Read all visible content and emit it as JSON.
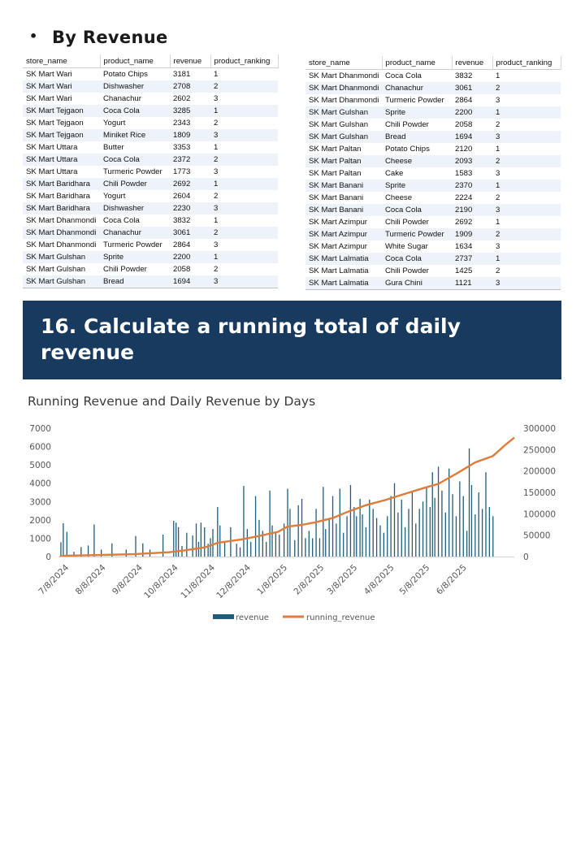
{
  "section_heading": "By Revenue",
  "table_headers": [
    "store_name",
    "product_name",
    "revenue",
    "product_ranking"
  ],
  "table_left": [
    [
      "SK Mart Wari",
      "Potato Chips",
      "3181",
      "1"
    ],
    [
      "SK Mart Wari",
      "Dishwasher",
      "2708",
      "2"
    ],
    [
      "SK Mart Wari",
      "Chanachur",
      "2602",
      "3"
    ],
    [
      "SK Mart Tejgaon",
      "Coca Cola",
      "3285",
      "1"
    ],
    [
      "SK Mart Tejgaon",
      "Yogurt",
      "2343",
      "2"
    ],
    [
      "SK Mart Tejgaon",
      "Miniket Rice",
      "1809",
      "3"
    ],
    [
      "SK Mart Uttara",
      "Butter",
      "3353",
      "1"
    ],
    [
      "SK Mart Uttara",
      "Coca Cola",
      "2372",
      "2"
    ],
    [
      "SK Mart Uttara",
      "Turmeric Powder",
      "1773",
      "3"
    ],
    [
      "SK Mart Baridhara",
      "Chili Powder",
      "2692",
      "1"
    ],
    [
      "SK Mart Baridhara",
      "Yogurt",
      "2604",
      "2"
    ],
    [
      "SK Mart Baridhara",
      "Dishwasher",
      "2230",
      "3"
    ],
    [
      "SK Mart Dhanmondi",
      "Coca Cola",
      "3832",
      "1"
    ],
    [
      "SK Mart Dhanmondi",
      "Chanachur",
      "3061",
      "2"
    ],
    [
      "SK Mart Dhanmondi",
      "Turmeric Powder",
      "2864",
      "3"
    ],
    [
      "SK Mart Gulshan",
      "Sprite",
      "2200",
      "1"
    ],
    [
      "SK Mart Gulshan",
      "Chili Powder",
      "2058",
      "2"
    ],
    [
      "SK Mart Gulshan",
      "Bread",
      "1694",
      "3"
    ]
  ],
  "table_right": [
    [
      "SK Mart Dhanmondi",
      "Coca Cola",
      "3832",
      "1"
    ],
    [
      "SK Mart Dhanmondi",
      "Chanachur",
      "3061",
      "2"
    ],
    [
      "SK Mart Dhanmondi",
      "Turmeric Powder",
      "2864",
      "3"
    ],
    [
      "SK Mart Gulshan",
      "Sprite",
      "2200",
      "1"
    ],
    [
      "SK Mart Gulshan",
      "Chili Powder",
      "2058",
      "2"
    ],
    [
      "SK Mart Gulshan",
      "Bread",
      "1694",
      "3"
    ],
    [
      "SK Mart Paltan",
      "Potato Chips",
      "2120",
      "1"
    ],
    [
      "SK Mart Paltan",
      "Cheese",
      "2093",
      "2"
    ],
    [
      "SK Mart Paltan",
      "Cake",
      "1583",
      "3"
    ],
    [
      "SK Mart Banani",
      "Sprite",
      "2370",
      "1"
    ],
    [
      "SK Mart Banani",
      "Cheese",
      "2224",
      "2"
    ],
    [
      "SK Mart Banani",
      "Coca Cola",
      "2190",
      "3"
    ],
    [
      "SK Mart Azimpur",
      "Chili Powder",
      "2692",
      "1"
    ],
    [
      "SK Mart Azimpur",
      "Turmeric Powder",
      "1909",
      "2"
    ],
    [
      "SK Mart Azimpur",
      "White Sugar",
      "1634",
      "3"
    ],
    [
      "SK Mart Lalmatia",
      "Coca Cola",
      "2737",
      "1"
    ],
    [
      "SK Mart Lalmatia",
      "Chili Powder",
      "1425",
      "2"
    ],
    [
      "SK Mart Lalmatia",
      "Gura Chini",
      "1121",
      "3"
    ]
  ],
  "banner_title": "16. Calculate a running total of daily revenue",
  "colors": {
    "banner": "#183a5e",
    "revenue_bar": "#1f5c7a",
    "running_line": "#e07b39",
    "row_alt": "#eef3fa"
  },
  "chart_data": {
    "type": "bar+line",
    "title": "Running Revenue and Daily Revenue by Days",
    "x_tick_labels": [
      "7/8/2024",
      "8/8/2024",
      "9/8/2024",
      "10/8/2024",
      "11/8/2024",
      "12/8/2024",
      "1/8/2025",
      "2/8/2025",
      "3/8/2025",
      "4/8/2025",
      "5/8/2025",
      "6/8/2025"
    ],
    "y_left": {
      "ticks": [
        0,
        1000,
        2000,
        3000,
        4000,
        5000,
        6000,
        7000
      ],
      "range": [
        0,
        7000
      ]
    },
    "y_right": {
      "ticks": [
        0,
        50000,
        100000,
        150000,
        200000,
        250000,
        300000
      ],
      "range": [
        0,
        300000
      ]
    },
    "grid": false,
    "legend_position": "bottom",
    "series": [
      {
        "name": "revenue",
        "kind": "bar",
        "axis": "left",
        "points": [
          [
            "2024-07-01",
            780
          ],
          [
            "2024-07-03",
            1820
          ],
          [
            "2024-07-06",
            1350
          ],
          [
            "2024-07-12",
            260
          ],
          [
            "2024-07-18",
            520
          ],
          [
            "2024-07-24",
            600
          ],
          [
            "2024-07-29",
            1750
          ],
          [
            "2024-08-04",
            380
          ],
          [
            "2024-08-13",
            720
          ],
          [
            "2024-08-25",
            380
          ],
          [
            "2024-09-02",
            1120
          ],
          [
            "2024-09-08",
            720
          ],
          [
            "2024-09-14",
            380
          ],
          [
            "2024-09-25",
            1200
          ],
          [
            "2024-10-04",
            1950
          ],
          [
            "2024-10-06",
            1850
          ],
          [
            "2024-10-08",
            1600
          ],
          [
            "2024-10-11",
            580
          ],
          [
            "2024-10-15",
            1300
          ],
          [
            "2024-10-20",
            1150
          ],
          [
            "2024-10-23",
            1800
          ],
          [
            "2024-10-25",
            800
          ],
          [
            "2024-10-27",
            1850
          ],
          [
            "2024-10-30",
            1600
          ],
          [
            "2024-11-02",
            700
          ],
          [
            "2024-11-04",
            1000
          ],
          [
            "2024-11-06",
            1500
          ],
          [
            "2024-11-10",
            2700
          ],
          [
            "2024-11-12",
            1700
          ],
          [
            "2024-11-16",
            800
          ],
          [
            "2024-11-21",
            1600
          ],
          [
            "2024-11-26",
            700
          ],
          [
            "2024-11-29",
            500
          ],
          [
            "2024-12-02",
            3850
          ],
          [
            "2024-12-05",
            1500
          ],
          [
            "2024-12-08",
            800
          ],
          [
            "2024-12-12",
            3300
          ],
          [
            "2024-12-15",
            2000
          ],
          [
            "2024-12-18",
            1400
          ],
          [
            "2024-12-21",
            800
          ],
          [
            "2024-12-24",
            3600
          ],
          [
            "2024-12-26",
            1700
          ],
          [
            "2024-12-29",
            1300
          ],
          [
            "2025-01-01",
            1200
          ],
          [
            "2025-01-05",
            1800
          ],
          [
            "2025-01-08",
            3700
          ],
          [
            "2025-01-10",
            2600
          ],
          [
            "2025-01-14",
            900
          ],
          [
            "2025-01-17",
            2800
          ],
          [
            "2025-01-20",
            3150
          ],
          [
            "2025-01-23",
            1000
          ],
          [
            "2025-01-26",
            1400
          ],
          [
            "2025-01-29",
            1000
          ],
          [
            "2025-02-01",
            2600
          ],
          [
            "2025-02-04",
            1000
          ],
          [
            "2025-02-07",
            3800
          ],
          [
            "2025-02-09",
            1500
          ],
          [
            "2025-02-12",
            2100
          ],
          [
            "2025-02-15",
            3300
          ],
          [
            "2025-02-18",
            1800
          ],
          [
            "2025-02-21",
            3700
          ],
          [
            "2025-02-24",
            1300
          ],
          [
            "2025-02-27",
            2200
          ],
          [
            "2025-03-02",
            3900
          ],
          [
            "2025-03-05",
            2700
          ],
          [
            "2025-03-07",
            2200
          ],
          [
            "2025-03-10",
            3150
          ],
          [
            "2025-03-12",
            2300
          ],
          [
            "2025-03-15",
            1600
          ],
          [
            "2025-03-18",
            3100
          ],
          [
            "2025-03-21",
            2600
          ],
          [
            "2025-03-24",
            2100
          ],
          [
            "2025-03-27",
            1700
          ],
          [
            "2025-03-30",
            1300
          ],
          [
            "2025-04-02",
            2200
          ],
          [
            "2025-04-05",
            3300
          ],
          [
            "2025-04-08",
            4000
          ],
          [
            "2025-04-11",
            2400
          ],
          [
            "2025-04-14",
            3100
          ],
          [
            "2025-04-17",
            1600
          ],
          [
            "2025-04-20",
            2600
          ],
          [
            "2025-04-23",
            3500
          ],
          [
            "2025-04-26",
            1800
          ],
          [
            "2025-04-29",
            2600
          ],
          [
            "2025-05-02",
            3000
          ],
          [
            "2025-05-05",
            3800
          ],
          [
            "2025-05-08",
            2700
          ],
          [
            "2025-05-10",
            4600
          ],
          [
            "2025-05-12",
            3200
          ],
          [
            "2025-05-15",
            4900
          ],
          [
            "2025-05-18",
            3600
          ],
          [
            "2025-05-21",
            2400
          ],
          [
            "2025-05-24",
            4800
          ],
          [
            "2025-05-27",
            3400
          ],
          [
            "2025-05-30",
            2200
          ],
          [
            "2025-06-02",
            4100
          ],
          [
            "2025-06-05",
            3300
          ],
          [
            "2025-06-08",
            1400
          ],
          [
            "2025-06-10",
            5900
          ],
          [
            "2025-06-12",
            3900
          ],
          [
            "2025-06-15",
            2300
          ],
          [
            "2025-06-18",
            3500
          ],
          [
            "2025-06-21",
            2600
          ],
          [
            "2025-06-24",
            4600
          ],
          [
            "2025-06-27",
            2700
          ],
          [
            "2025-06-30",
            2200
          ]
        ]
      },
      {
        "name": "running_revenue",
        "kind": "line",
        "axis": "right",
        "points": [
          [
            "2024-06-30",
            0
          ],
          [
            "2024-07-05",
            2000
          ],
          [
            "2024-07-31",
            3500
          ],
          [
            "2024-08-31",
            5500
          ],
          [
            "2024-09-30",
            10000
          ],
          [
            "2024-10-15",
            15000
          ],
          [
            "2024-10-31",
            22000
          ],
          [
            "2024-11-10",
            32000
          ],
          [
            "2024-11-30",
            40000
          ],
          [
            "2024-12-15",
            48000
          ],
          [
            "2024-12-31",
            58000
          ],
          [
            "2025-01-08",
            70000
          ],
          [
            "2025-01-20",
            74000
          ],
          [
            "2025-01-31",
            80000
          ],
          [
            "2025-02-15",
            90000
          ],
          [
            "2025-02-28",
            105000
          ],
          [
            "2025-03-15",
            120000
          ],
          [
            "2025-03-31",
            132000
          ],
          [
            "2025-04-15",
            145000
          ],
          [
            "2025-04-30",
            158000
          ],
          [
            "2025-05-15",
            170000
          ],
          [
            "2025-05-31",
            195000
          ],
          [
            "2025-06-15",
            220000
          ],
          [
            "2025-06-30",
            235000
          ],
          [
            "2025-07-10",
            260000
          ],
          [
            "2025-07-18",
            278000
          ]
        ]
      }
    ]
  }
}
